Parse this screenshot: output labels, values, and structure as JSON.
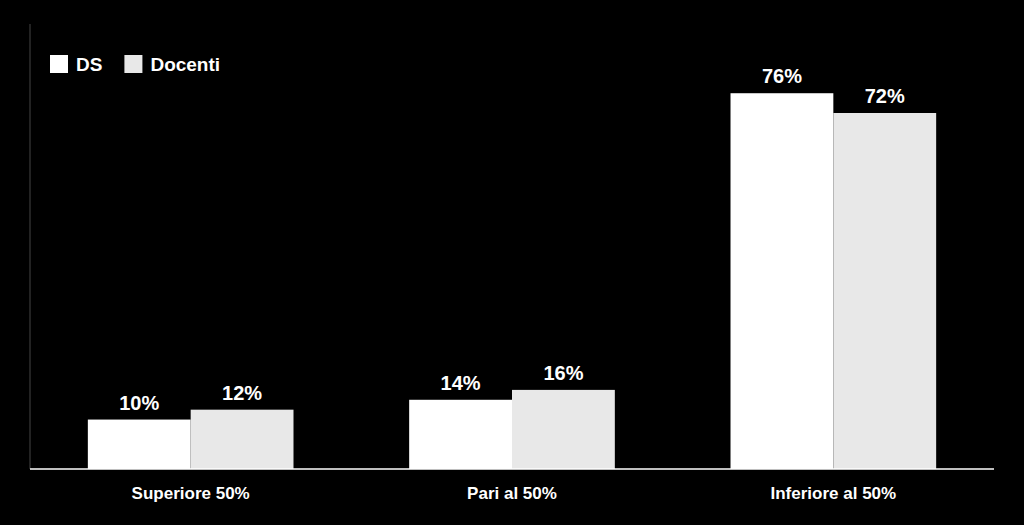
{
  "chart_data": {
    "type": "bar",
    "categories": [
      "Superiore 50%",
      "Pari al 50%",
      "Inferiore al 50%"
    ],
    "series": [
      {
        "name": "DS",
        "color": "#ffffff",
        "values": [
          10,
          14,
          76
        ],
        "value_labels": [
          "10%",
          "14%",
          "76%"
        ]
      },
      {
        "name": "Docenti",
        "color": "#e8e8e8",
        "values": [
          12,
          16,
          72
        ],
        "value_labels": [
          "12%",
          "16%",
          "72%"
        ]
      }
    ],
    "ylim": [
      0,
      90
    ],
    "data_labels": true,
    "tick_labels": "x",
    "legend": "top-left",
    "grid": false
  }
}
